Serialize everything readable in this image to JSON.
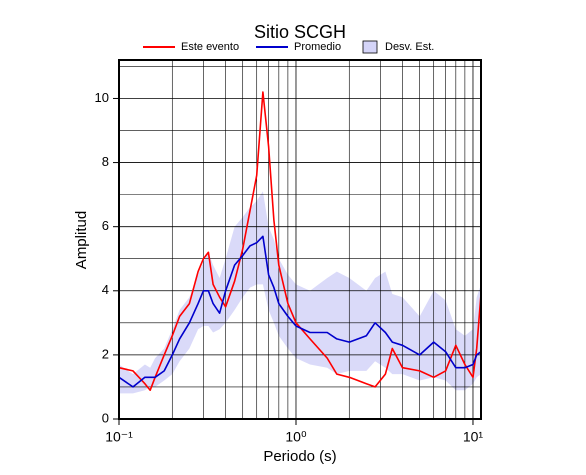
{
  "chart_data": {
    "type": "line",
    "title": "Sitio SCGH",
    "x_label": "Periodo (s)",
    "y_label": "Amplitud",
    "x_scale": "log",
    "grid": true,
    "legend": "top",
    "xlim": [
      0.1,
      11.1
    ],
    "ylim": [
      0,
      11.2
    ],
    "xticks": [
      {
        "value": 0.1,
        "label": "10⁻¹"
      },
      {
        "value": 1,
        "label": "10⁰"
      },
      {
        "value": 10,
        "label": "10¹"
      }
    ],
    "xminor": [
      0.2,
      0.3,
      0.4,
      0.5,
      0.6,
      0.7,
      0.8,
      0.9,
      2,
      3,
      4,
      5,
      6,
      7,
      8,
      9
    ],
    "yticks": [
      0,
      2,
      4,
      6,
      8,
      10
    ],
    "yminor": [
      1,
      3,
      5,
      7,
      9,
      11
    ],
    "x": [
      0.1,
      0.12,
      0.14,
      0.15,
      0.16,
      0.18,
      0.2,
      0.22,
      0.25,
      0.28,
      0.3,
      0.32,
      0.34,
      0.37,
      0.4,
      0.45,
      0.5,
      0.55,
      0.6,
      0.65,
      0.7,
      0.75,
      0.8,
      0.9,
      1.0,
      1.2,
      1.5,
      1.7,
      2.0,
      2.5,
      2.8,
      3.2,
      3.5,
      4,
      5,
      6,
      7,
      8,
      9,
      10,
      10.5,
      11.1
    ],
    "series": [
      {
        "name": "Este evento",
        "color": "#ff0000",
        "values": [
          1.6,
          1.5,
          1.1,
          0.9,
          1.3,
          2.0,
          2.6,
          3.2,
          3.6,
          4.6,
          5.0,
          5.2,
          4.2,
          3.8,
          3.5,
          4.3,
          5.3,
          6.5,
          7.6,
          10.2,
          8.5,
          6.2,
          4.8,
          3.6,
          3.0,
          2.5,
          1.9,
          1.4,
          1.3,
          1.1,
          1.0,
          1.4,
          2.2,
          1.6,
          1.5,
          1.3,
          1.5,
          2.3,
          1.7,
          1.3,
          2.2,
          3.9
        ]
      },
      {
        "name": "Promedio",
        "color": "#0000cc",
        "values": [
          1.3,
          1.0,
          1.3,
          1.3,
          1.3,
          1.5,
          2.0,
          2.5,
          3.0,
          3.6,
          4.0,
          4.0,
          3.6,
          3.3,
          4.0,
          4.8,
          5.1,
          5.4,
          5.5,
          5.7,
          4.5,
          4.1,
          3.6,
          3.2,
          2.9,
          2.7,
          2.7,
          2.5,
          2.4,
          2.6,
          3.0,
          2.7,
          2.4,
          2.3,
          2.0,
          2.4,
          2.1,
          1.6,
          1.6,
          1.7,
          2.0,
          2.1
        ]
      }
    ],
    "band": {
      "name": "Desv. Est.",
      "color": "#d4d4f8",
      "lower": [
        0.8,
        0.8,
        0.9,
        1.0,
        1.0,
        1.2,
        1.4,
        1.8,
        2.2,
        2.8,
        2.9,
        2.9,
        2.7,
        2.8,
        3.0,
        3.4,
        3.8,
        4.1,
        4.2,
        4.2,
        3.4,
        3.0,
        2.6,
        2.2,
        1.9,
        1.7,
        1.6,
        1.4,
        1.5,
        1.5,
        1.8,
        1.6,
        1.4,
        1.4,
        1.2,
        1.3,
        1.2,
        0.9,
        0.9,
        1.1,
        1.3,
        1.4
      ],
      "upper": [
        1.7,
        1.4,
        1.7,
        1.6,
        1.9,
        2.2,
        2.8,
        3.4,
        3.8,
        4.5,
        4.9,
        5.2,
        4.8,
        4.4,
        5.0,
        6.0,
        6.3,
        6.6,
        6.8,
        7.1,
        6.0,
        5.6,
        5.0,
        4.5,
        4.2,
        4.0,
        4.4,
        4.6,
        4.4,
        4.0,
        4.4,
        4.6,
        3.9,
        3.8,
        3.2,
        4.0,
        3.7,
        2.8,
        2.6,
        2.8,
        3.8,
        4.2
      ]
    }
  }
}
